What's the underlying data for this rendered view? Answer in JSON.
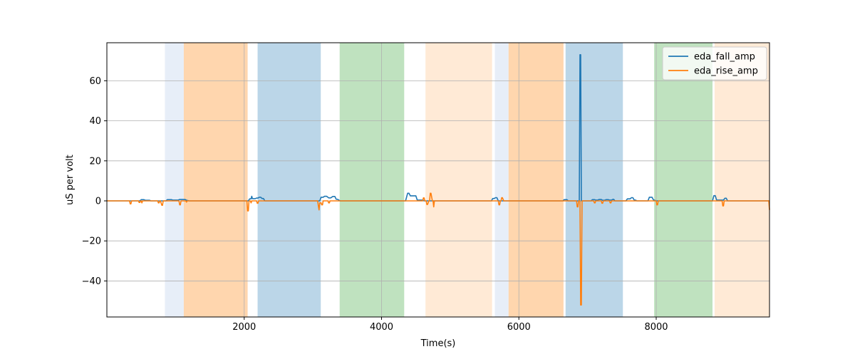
{
  "chart_data": {
    "type": "line",
    "title": "",
    "xlabel": "Time(s)",
    "ylabel": "uS per volt",
    "xlim": [
      0,
      9650
    ],
    "ylim": [
      -58,
      79
    ],
    "xticks": [
      2000,
      4000,
      6000,
      8000
    ],
    "yticks": [
      -40,
      -20,
      0,
      20,
      40,
      60
    ],
    "grid": true,
    "legend_position": "top-right",
    "series": [
      {
        "name": "eda_fall_amp",
        "color": "#1f77b4",
        "x": [
          0,
          480,
          500,
          540,
          560,
          620,
          640,
          860,
          880,
          940,
          960,
          1040,
          1060,
          1140,
          1160,
          1200,
          2060,
          2080,
          2100,
          2110,
          2120,
          2160,
          2180,
          2200,
          2220,
          2240,
          2260,
          2280,
          2300,
          3100,
          3120,
          3150,
          3170,
          3200,
          3230,
          3260,
          3290,
          3320,
          3340,
          3360,
          3380,
          3400,
          4350,
          4380,
          4400,
          4420,
          4500,
          4520,
          4600,
          4620,
          5600,
          5620,
          5640,
          5660,
          5680,
          5700,
          6640,
          6660,
          6700,
          6720,
          6880,
          6890,
          6900,
          6910,
          6920,
          7050,
          7070,
          7100,
          7120,
          7150,
          7170,
          7200,
          7220,
          7250,
          7270,
          7300,
          7320,
          7350,
          7370,
          7380,
          7400,
          7560,
          7580,
          7620,
          7640,
          7660,
          7680,
          7700,
          7720,
          7880,
          7900,
          7940,
          7960,
          8000,
          8820,
          8840,
          8860,
          8880,
          8980,
          9000,
          9020,
          9040,
          9650
        ],
        "values": [
          0,
          0,
          0.6,
          0.6,
          0.3,
          0.3,
          0,
          0,
          0.6,
          0.6,
          0.4,
          0.4,
          0.7,
          0.7,
          0.3,
          0,
          0,
          1.0,
          1.0,
          2.3,
          1.1,
          1.1,
          1.4,
          1.4,
          1.8,
          1.8,
          1.2,
          1.2,
          0,
          0,
          1.8,
          1.8,
          2.3,
          2.3,
          1.5,
          1.5,
          2.2,
          2.2,
          0.8,
          0.8,
          0.3,
          0,
          0,
          3.8,
          3.8,
          2.5,
          2.5,
          0.4,
          0.4,
          0,
          0,
          1.2,
          1.2,
          1.6,
          1.6,
          0,
          0,
          0.6,
          0.6,
          0,
          0,
          73,
          73,
          0,
          0,
          0,
          0.6,
          0.6,
          0.4,
          0.4,
          0.7,
          0.7,
          0.3,
          0.3,
          0.6,
          0.6,
          0.4,
          0.4,
          0.8,
          0.8,
          0,
          0,
          1.0,
          1.0,
          1.6,
          1.6,
          0.4,
          0.4,
          0,
          0,
          1.8,
          1.8,
          0.5,
          0,
          0,
          2.6,
          2.6,
          0.4,
          0.4,
          1.3,
          1.3,
          0,
          0
        ]
      },
      {
        "name": "eda_rise_amp",
        "color": "#ff7f0e",
        "x": [
          0,
          330,
          340,
          350,
          360,
          460,
          470,
          480,
          490,
          500,
          510,
          520,
          740,
          750,
          760,
          770,
          780,
          800,
          810,
          820,
          830,
          1050,
          1060,
          1070,
          1080,
          1150,
          1160,
          1170,
          2030,
          2040,
          2050,
          2060,
          2070,
          2090,
          2100,
          2110,
          2180,
          2190,
          2200,
          2210,
          3070,
          3080,
          3090,
          3100,
          3120,
          3130,
          3140,
          3150,
          3220,
          3230,
          3240,
          3250,
          4600,
          4610,
          4620,
          4630,
          4650,
          4660,
          4670,
          4690,
          4700,
          4710,
          4720,
          4740,
          4750,
          4760,
          4770,
          5700,
          5710,
          5720,
          5730,
          5740,
          5750,
          5760,
          5780,
          5790,
          5800,
          6840,
          6850,
          6860,
          6870,
          6890,
          6900,
          6910,
          6920,
          7090,
          7100,
          7110,
          7120,
          7200,
          7210,
          7220,
          7230,
          7320,
          7330,
          7340,
          7350,
          8000,
          8010,
          8020,
          8030,
          8960,
          8970,
          8980,
          8990,
          9640,
          9650
        ],
        "values": [
          0,
          0,
          -1.5,
          -1.5,
          0,
          0,
          -0.8,
          -0.8,
          0,
          0,
          -1.0,
          0,
          0,
          -1.0,
          -1.0,
          0,
          0,
          -2.2,
          -2.2,
          0,
          0,
          0,
          -2.0,
          -2.0,
          0,
          0,
          -0.6,
          0,
          0,
          0,
          -5,
          -5,
          0,
          0,
          -1.0,
          0,
          0,
          -1.2,
          -1.2,
          0,
          0,
          -2.5,
          -4.5,
          -1.0,
          -1.0,
          -2.0,
          -2.0,
          0,
          0,
          -1.0,
          -1.0,
          0,
          0,
          1.5,
          1.5,
          0,
          0,
          -1.8,
          -1.8,
          0,
          0,
          3.8,
          3.8,
          0,
          0,
          -3.0,
          0,
          0,
          -2.0,
          -2.0,
          0,
          0,
          1.6,
          1.6,
          0,
          0,
          0,
          0,
          -3.0,
          -3.0,
          0,
          0,
          -52,
          -52,
          0,
          0,
          -1.0,
          -1.0,
          0,
          0,
          -1.2,
          -1.2,
          0,
          0,
          -1.0,
          -1.0,
          0,
          0,
          -2.0,
          -2.0,
          0,
          0,
          -2.5,
          -2.5,
          0,
          0,
          -4.5
        ]
      }
    ],
    "shaded_regions": [
      {
        "x0": 845,
        "x1": 1120,
        "color": "#aec7e8",
        "opacity": 0.3
      },
      {
        "x0": 1120,
        "x1": 2050,
        "color": "#ffbb78",
        "opacity": 0.6
      },
      {
        "x0": 2195,
        "x1": 3115,
        "color": "#1f77b4",
        "opacity": 0.3
      },
      {
        "x0": 3390,
        "x1": 4330,
        "color": "#2ca02c",
        "opacity": 0.3
      },
      {
        "x0": 4640,
        "x1": 5610,
        "color": "#ffbb78",
        "opacity": 0.3
      },
      {
        "x0": 5650,
        "x1": 5850,
        "color": "#aec7e8",
        "opacity": 0.3
      },
      {
        "x0": 5850,
        "x1": 6650,
        "color": "#ffbb78",
        "opacity": 0.6
      },
      {
        "x0": 6680,
        "x1": 7515,
        "color": "#1f77b4",
        "opacity": 0.3
      },
      {
        "x0": 7970,
        "x1": 8820,
        "color": "#2ca02c",
        "opacity": 0.3
      },
      {
        "x0": 8850,
        "x1": 9650,
        "color": "#ffbb78",
        "opacity": 0.3
      }
    ]
  }
}
